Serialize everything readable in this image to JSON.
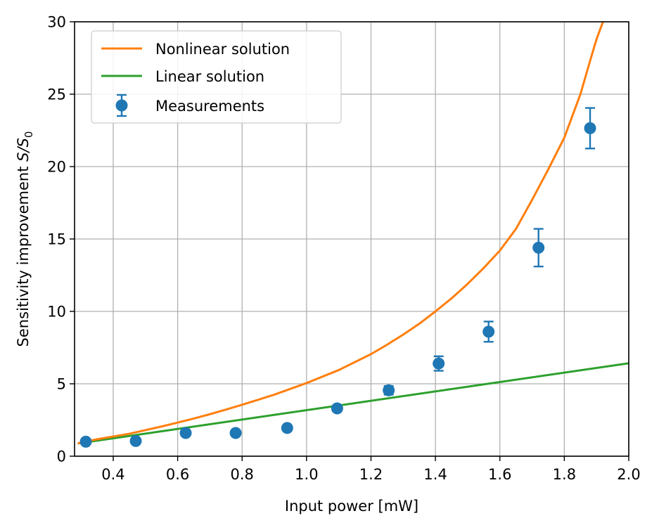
{
  "chart_data": {
    "type": "line",
    "xlabel": "Input power [mW]",
    "ylabel_main": "Sensitivity improvement ",
    "ylabel_math": "S/S",
    "ylabel_sub": "0",
    "xlim": [
      0.28,
      2.0
    ],
    "ylim": [
      0,
      30
    ],
    "grid": true,
    "legend_position": "top-left",
    "x_ticks": [
      0.4,
      0.6,
      0.8,
      1.0,
      1.2,
      1.4,
      1.6,
      1.8,
      2.0
    ],
    "x_tick_labels": [
      "0.4",
      "0.6",
      "0.8",
      "1.0",
      "1.2",
      "1.4",
      "1.6",
      "1.8",
      "2.0"
    ],
    "y_ticks": [
      0,
      5,
      10,
      15,
      20,
      25,
      30
    ],
    "y_tick_labels": [
      "0",
      "5",
      "10",
      "15",
      "20",
      "25",
      "30"
    ],
    "legend": [
      "Nonlinear solution",
      "Linear solution",
      "Measurements"
    ],
    "colors": {
      "nonlinear": "#ff7f0e",
      "linear": "#2ca02c",
      "measurements": "#1f77b4",
      "grid": "#b0b0b0"
    },
    "series": [
      {
        "name": "Nonlinear solution",
        "kind": "line",
        "x": [
          0.29,
          0.3,
          0.35,
          0.4,
          0.45,
          0.5,
          0.55,
          0.6,
          0.65,
          0.7,
          0.75,
          0.8,
          0.85,
          0.9,
          0.95,
          1.0,
          1.05,
          1.1,
          1.15,
          1.2,
          1.25,
          1.3,
          1.35,
          1.4,
          1.45,
          1.5,
          1.55,
          1.6,
          1.65,
          1.7,
          1.75,
          1.8,
          1.85,
          1.88,
          1.9,
          1.92
        ],
        "y": [
          0.88,
          0.93,
          1.17,
          1.36,
          1.55,
          1.8,
          2.05,
          2.32,
          2.6,
          2.9,
          3.22,
          3.55,
          3.9,
          4.25,
          4.65,
          5.05,
          5.5,
          5.95,
          6.5,
          7.05,
          7.7,
          8.4,
          9.15,
          10.0,
          10.9,
          11.9,
          13.0,
          14.2,
          15.7,
          17.7,
          19.8,
          22.0,
          25.0,
          27.3,
          28.8,
          30.0
        ]
      },
      {
        "name": "Linear solution",
        "kind": "line",
        "x": [
          0.29,
          2.0
        ],
        "y": [
          0.88,
          6.42
        ]
      },
      {
        "name": "Measurements",
        "kind": "errorbar",
        "x": [
          0.315,
          0.47,
          0.625,
          0.78,
          0.94,
          1.095,
          1.255,
          1.41,
          1.565,
          1.72,
          1.88
        ],
        "y": [
          1.0,
          1.05,
          1.6,
          1.6,
          1.95,
          3.3,
          4.55,
          6.4,
          8.6,
          14.4,
          22.65
        ],
        "yerr": [
          0.05,
          0.05,
          0.1,
          0.1,
          0.1,
          0.2,
          0.3,
          0.5,
          0.7,
          1.3,
          1.4
        ]
      }
    ]
  }
}
